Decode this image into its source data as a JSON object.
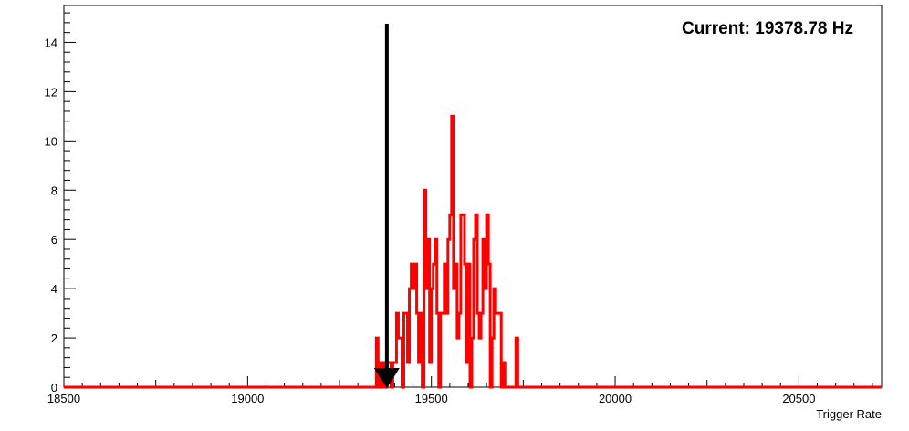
{
  "chart_data": {
    "type": "histogram",
    "title": "",
    "xlabel": "Trigger Rate",
    "ylabel": "",
    "xlim": [
      18500,
      20725
    ],
    "ylim": [
      0,
      15.5
    ],
    "x_ticks": [
      18500,
      19000,
      19500,
      20000,
      20500
    ],
    "x_tick_labels": [
      "18500",
      "19000",
      "19500",
      "20000",
      "20500"
    ],
    "y_ticks": [
      0,
      2,
      4,
      6,
      8,
      10,
      12,
      14
    ],
    "y_tick_labels": [
      "0",
      "2",
      "4",
      "6",
      "8",
      "10",
      "12",
      "14"
    ],
    "grid": false,
    "line_color": "#ff0000",
    "bin_width": 5,
    "bins_start": 19350,
    "counts": [
      2,
      0,
      1,
      0,
      1,
      0,
      1,
      1,
      0,
      1,
      1,
      3,
      2,
      2,
      0,
      3,
      3,
      1,
      4,
      5,
      4,
      5,
      3,
      1,
      3,
      0,
      8,
      4,
      6,
      1,
      4,
      5,
      6,
      3,
      0,
      3,
      3,
      5,
      3,
      6,
      7,
      11,
      4,
      5,
      2,
      3,
      7,
      7,
      5,
      1,
      5,
      0,
      2,
      6,
      7,
      3,
      2,
      3,
      6,
      4,
      7,
      5,
      0,
      2,
      4,
      3,
      3,
      3,
      0,
      1,
      0,
      0,
      0,
      0,
      0,
      0,
      2
    ],
    "annotation": "Current: 19378.78 Hz",
    "marker": {
      "x": 19378.78,
      "color": "#000000"
    }
  }
}
